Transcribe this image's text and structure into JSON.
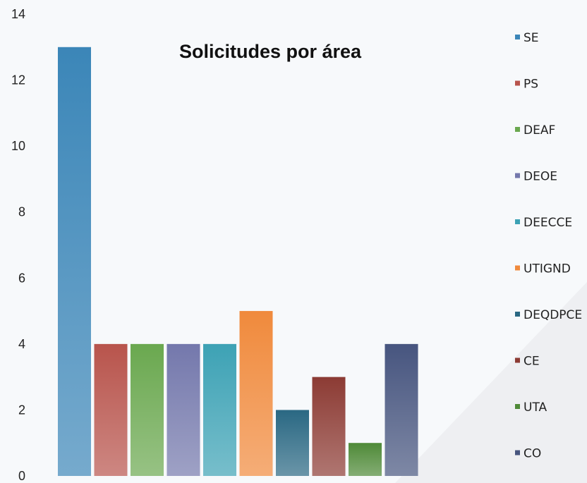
{
  "chart_data": {
    "type": "bar",
    "title": "Solicitudes por área",
    "xlabel": "",
    "ylabel": "",
    "ylim": [
      0,
      14
    ],
    "yticks": [
      0,
      2,
      4,
      6,
      8,
      10,
      12,
      14
    ],
    "grid": false,
    "legend_position": "right",
    "series": [
      {
        "name": "SE",
        "value": 13,
        "color": "#3b86b8"
      },
      {
        "name": "PS",
        "value": 4,
        "color": "#b8544c"
      },
      {
        "name": "DEAF",
        "value": 4,
        "color": "#6aa84f"
      },
      {
        "name": "DEOE",
        "value": 4,
        "color": "#7478ac"
      },
      {
        "name": "DEECCE",
        "value": 4,
        "color": "#3da2b5"
      },
      {
        "name": "UTIGND",
        "value": 5,
        "color": "#f08a3c"
      },
      {
        "name": "DEQDPCE",
        "value": 2,
        "color": "#2a6883"
      },
      {
        "name": "CE",
        "value": 3,
        "color": "#8c3b34"
      },
      {
        "name": "UTA",
        "value": 1,
        "color": "#4f8a38"
      },
      {
        "name": "CO",
        "value": 4,
        "color": "#47557f"
      }
    ]
  }
}
